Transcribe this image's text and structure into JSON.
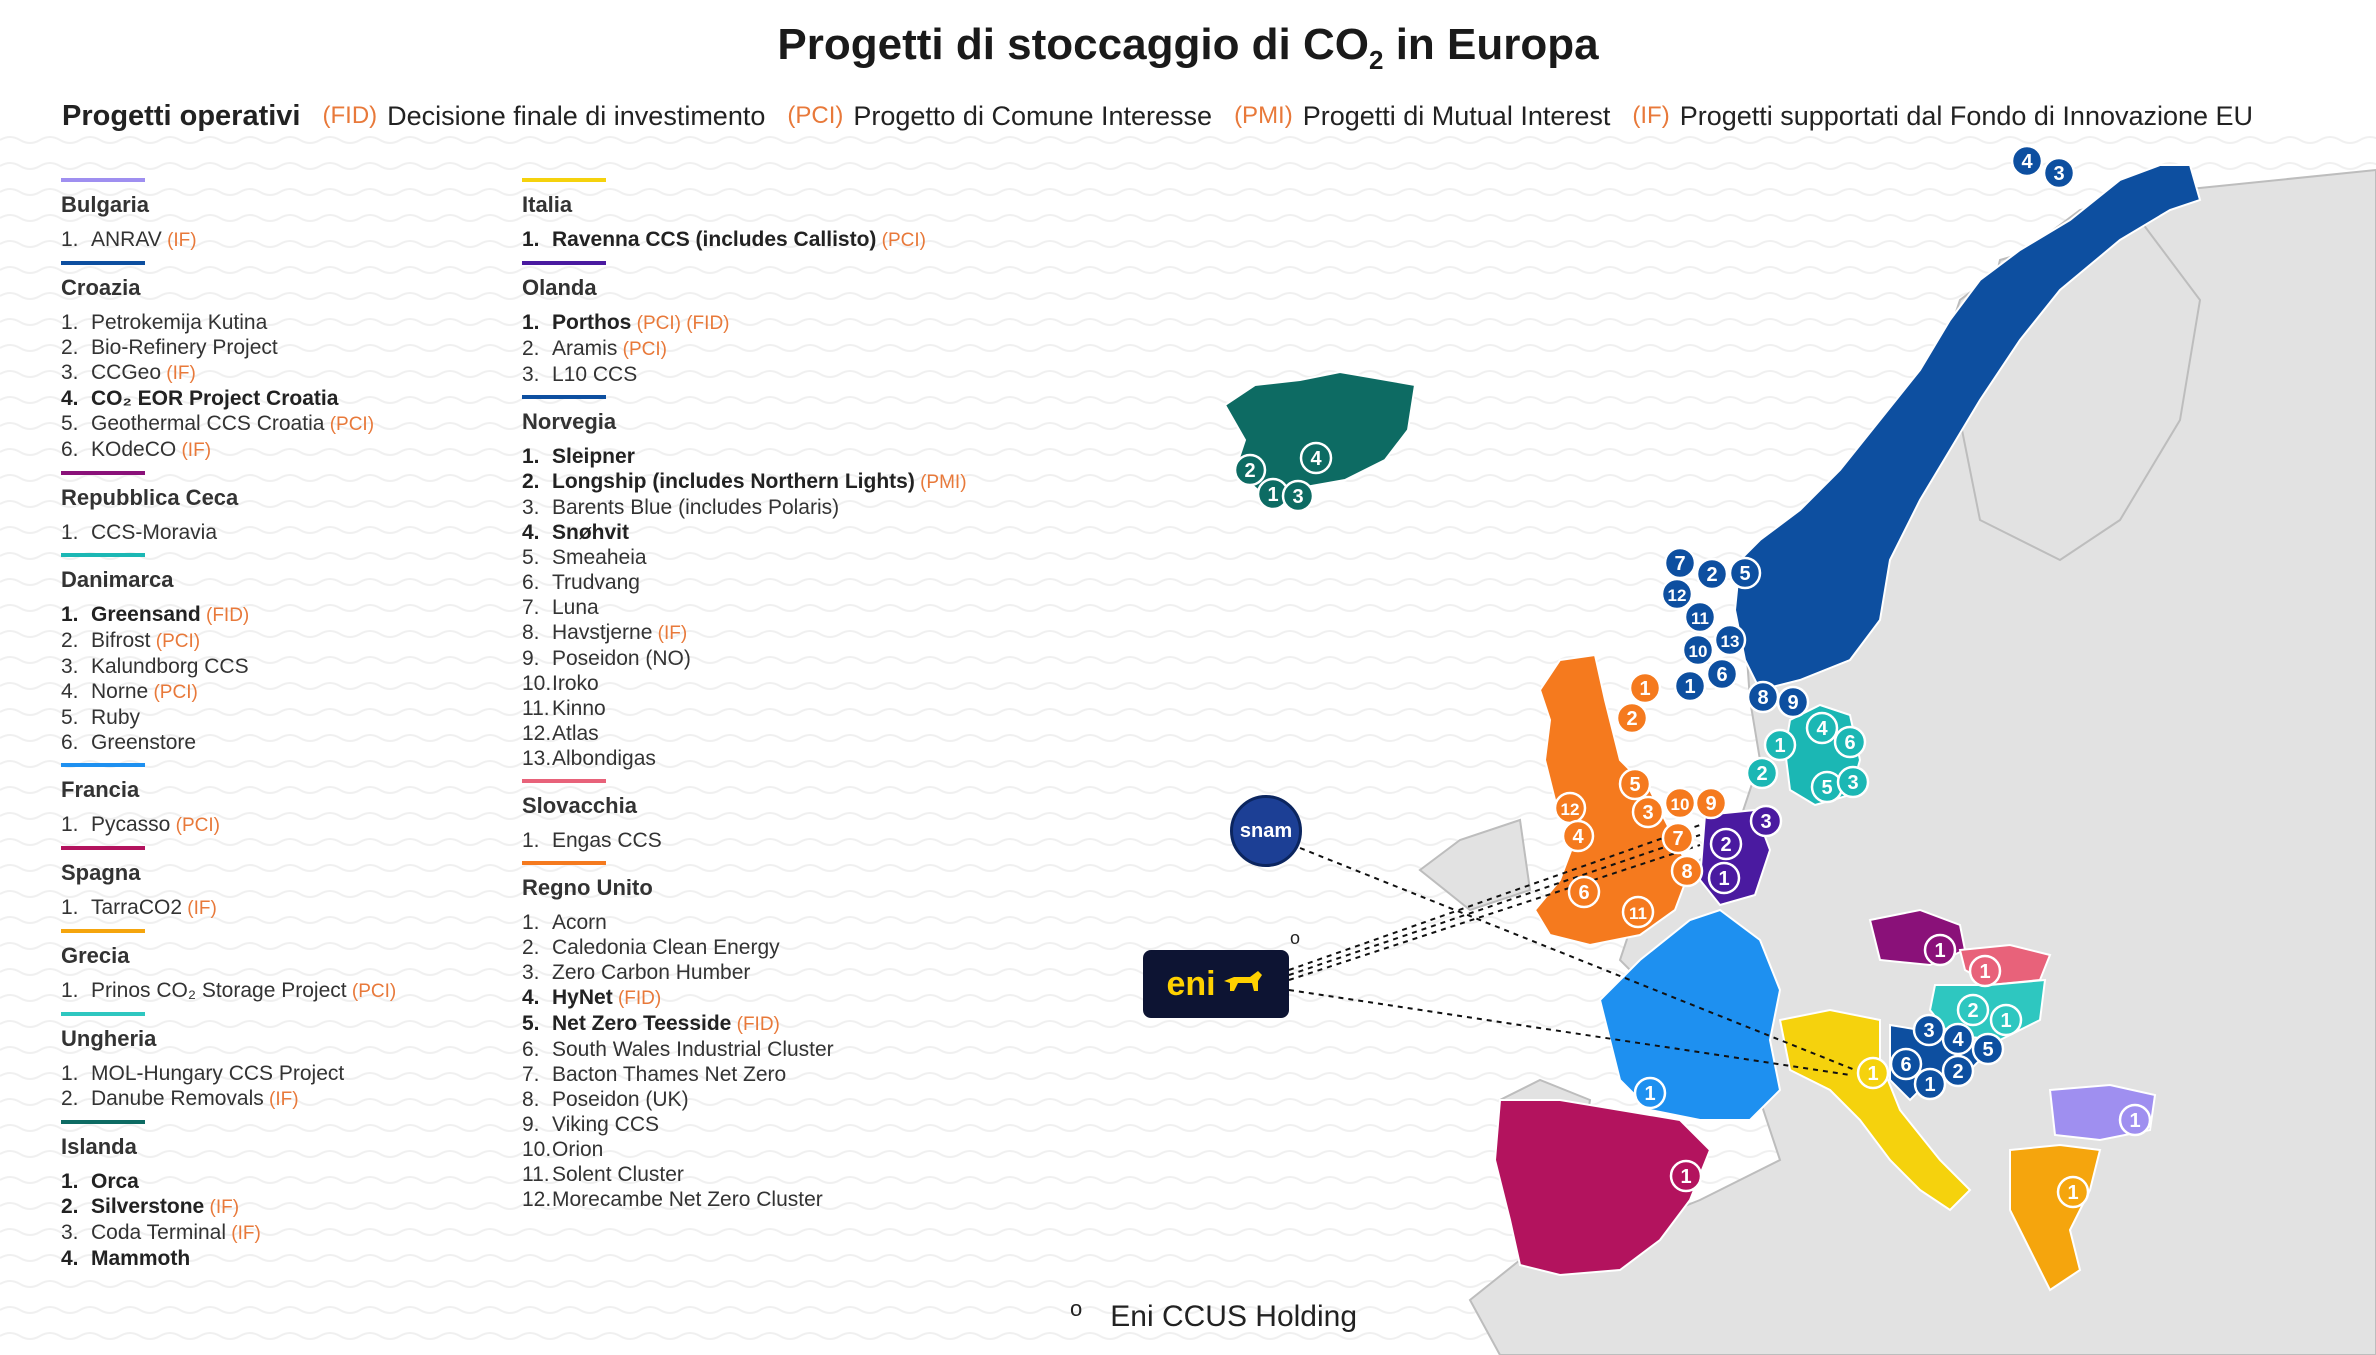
{
  "title": "Progetti di stoccaggio di CO",
  "title_sub": "2",
  "title_suffix": " in Europa",
  "legend": {
    "lead": "Progetti operativi",
    "entries": [
      {
        "code": "(FID)",
        "text": "Decisione finale di investimento"
      },
      {
        "code": "(PCI)",
        "text": "Progetto di Comune Interesse"
      },
      {
        "code": "(PMI)",
        "text": "Progetti di Mutual Interest"
      },
      {
        "code": "(IF)",
        "text": "Progetti supportati dal Fondo di Innovazione EU"
      }
    ]
  },
  "colors": {
    "tag": "#e8793a",
    "bulgaria": "#9f8ff0",
    "croazia": "#0d4fa0",
    "repceca": "#8a1179",
    "danimarca": "#1bb7b4",
    "francia": "#1e90f0",
    "spagna": "#b3135e",
    "grecia": "#f5a50d",
    "ungheria": "#2ec7c0",
    "islanda": "#0d6b63",
    "italia": "#f5d20d",
    "olanda": "#4a1aa0",
    "norvegia": "#0d4fa0",
    "slovacchia": "#e8627a",
    "regnounito": "#f57a1e",
    "land": "#e2e2e2"
  },
  "col1": [
    {
      "country": "Bulgaria",
      "color": "#9f8ff0",
      "items": [
        {
          "n": "1.",
          "t": "ANRAV",
          "tag": "(IF)",
          "b": false
        }
      ]
    },
    {
      "country": "Croazia",
      "color": "#0d4fa0",
      "items": [
        {
          "n": "1.",
          "t": "Petrokemija Kutina",
          "tag": "",
          "b": false
        },
        {
          "n": "2.",
          "t": "Bio-Refinery Project",
          "tag": "",
          "b": false
        },
        {
          "n": "3.",
          "t": "CCGeo",
          "tag": "(IF)",
          "b": false
        },
        {
          "n": "4.",
          "t": "CO₂ EOR Project Croatia",
          "tag": "",
          "b": true
        },
        {
          "n": "5.",
          "t": "Geothermal CCS Croatia",
          "tag": "(PCI)",
          "b": false
        },
        {
          "n": "6.",
          "t": "KOdeCO",
          "tag": "(IF)",
          "b": false
        }
      ]
    },
    {
      "country": "Repubblica Ceca",
      "color": "#8a1179",
      "items": [
        {
          "n": "1.",
          "t": "CCS-Moravia",
          "tag": "",
          "b": false
        }
      ]
    },
    {
      "country": "Danimarca",
      "color": "#1bb7b4",
      "items": [
        {
          "n": "1.",
          "t": "Greensand",
          "tag": "(FID)",
          "b": true
        },
        {
          "n": "2.",
          "t": "Bifrost",
          "tag": "(PCI)",
          "b": false
        },
        {
          "n": "3.",
          "t": "Kalundborg CCS",
          "tag": "",
          "b": false
        },
        {
          "n": "4.",
          "t": "Norne",
          "tag": "(PCI)",
          "b": false
        },
        {
          "n": "5.",
          "t": "Ruby",
          "tag": "",
          "b": false
        },
        {
          "n": "6.",
          "t": "Greenstore",
          "tag": "",
          "b": false
        }
      ]
    },
    {
      "country": "Francia",
      "color": "#1e90f0",
      "items": [
        {
          "n": "1.",
          "t": "Pycasso",
          "tag": "(PCI)",
          "b": false
        }
      ]
    },
    {
      "country": "Spagna",
      "color": "#b3135e",
      "items": [
        {
          "n": "1.",
          "t": "TarraCO2",
          "tag": "(IF)",
          "b": false
        }
      ]
    },
    {
      "country": "Grecia",
      "color": "#f5a50d",
      "items": [
        {
          "n": "1.",
          "t": "Prinos CO₂ Storage Project",
          "tag": "(PCI)",
          "b": false
        }
      ]
    },
    {
      "country": "Ungheria",
      "color": "#2ec7c0",
      "items": [
        {
          "n": "1.",
          "t": "MOL-Hungary CCS Project",
          "tag": "",
          "b": false
        },
        {
          "n": "2.",
          "t": "Danube Removals",
          "tag": "(IF)",
          "b": false
        }
      ]
    },
    {
      "country": "Islanda",
      "color": "#0d6b63",
      "items": [
        {
          "n": "1.",
          "t": "Orca",
          "tag": "",
          "b": true
        },
        {
          "n": "2.",
          "t": "Silverstone",
          "tag": "(IF)",
          "b": true
        },
        {
          "n": "3.",
          "t": "Coda Terminal",
          "tag": "(IF)",
          "b": false
        },
        {
          "n": "4.",
          "t": "Mammoth",
          "tag": "",
          "b": true
        }
      ]
    }
  ],
  "col2": [
    {
      "country": "Italia",
      "color": "#f5d20d",
      "items": [
        {
          "n": "1.",
          "t": "Ravenna CCS (includes Callisto)",
          "tag": "(PCI)",
          "b": true
        }
      ]
    },
    {
      "country": "Olanda",
      "color": "#4a1aa0",
      "items": [
        {
          "n": "1.",
          "t": "Porthos",
          "tag": "(PCI) (FID)",
          "b": true
        },
        {
          "n": "2.",
          "t": "Aramis",
          "tag": "(PCI)",
          "b": false
        },
        {
          "n": "3.",
          "t": "L10 CCS",
          "tag": "",
          "b": false
        }
      ]
    },
    {
      "country": "Norvegia",
      "color": "#0d4fa0",
      "items": [
        {
          "n": "1.",
          "t": "Sleipner",
          "tag": "",
          "b": true
        },
        {
          "n": "2.",
          "t": "Longship (includes Northern Lights)",
          "tag": "(PMI)",
          "b": true
        },
        {
          "n": "3.",
          "t": "Barents Blue (includes Polaris)",
          "tag": "",
          "b": false
        },
        {
          "n": "4.",
          "t": "Snøhvit",
          "tag": "",
          "b": true
        },
        {
          "n": "5.",
          "t": "Smeaheia",
          "tag": "",
          "b": false
        },
        {
          "n": "6.",
          "t": "Trudvang",
          "tag": "",
          "b": false
        },
        {
          "n": "7.",
          "t": "Luna",
          "tag": "",
          "b": false
        },
        {
          "n": "8.",
          "t": "Havstjerne",
          "tag": "(IF)",
          "b": false
        },
        {
          "n": "9.",
          "t": "Poseidon (NO)",
          "tag": "",
          "b": false
        },
        {
          "n": "10.",
          "t": "Iroko",
          "tag": "",
          "b": false
        },
        {
          "n": "11.",
          "t": "Kinno",
          "tag": "",
          "b": false
        },
        {
          "n": "12.",
          "t": "Atlas",
          "tag": "",
          "b": false
        },
        {
          "n": "13.",
          "t": "Albondigas",
          "tag": "",
          "b": false
        }
      ]
    },
    {
      "country": "Slovacchia",
      "color": "#e8627a",
      "items": [
        {
          "n": "1.",
          "t": "Engas CCS",
          "tag": "",
          "b": false
        }
      ]
    },
    {
      "country": "Regno Unito",
      "color": "#f57a1e",
      "items": [
        {
          "n": "1.",
          "t": "Acorn",
          "tag": "",
          "b": false
        },
        {
          "n": "2.",
          "t": "Caledonia Clean Energy",
          "tag": "",
          "b": false
        },
        {
          "n": "3.",
          "t": "Zero Carbon Humber",
          "tag": "",
          "b": false
        },
        {
          "n": "4.",
          "t": "HyNet",
          "tag": "(FID)",
          "b": true
        },
        {
          "n": "5.",
          "t": "Net Zero Teesside",
          "tag": "(FID)",
          "b": true
        },
        {
          "n": "6.",
          "t": "South Wales Industrial Cluster",
          "tag": "",
          "b": false
        },
        {
          "n": "7.",
          "t": "Bacton Thames Net Zero",
          "tag": "",
          "b": false
        },
        {
          "n": "8.",
          "t": "Poseidon (UK)",
          "tag": "",
          "b": false
        },
        {
          "n": "9.",
          "t": "Viking CCS",
          "tag": "",
          "b": false
        },
        {
          "n": "10.",
          "t": "Orion",
          "tag": "",
          "b": false
        },
        {
          "n": "11.",
          "t": "Solent Cluster",
          "tag": "",
          "b": false
        },
        {
          "n": "12.",
          "t": "Morecambe Net Zero Cluster",
          "tag": "",
          "b": false
        }
      ]
    }
  ],
  "logos": {
    "eni": "eni",
    "snam": "snam",
    "degree": "o"
  },
  "footnote": {
    "mark": "o",
    "text": "Eni CCUS Holding"
  },
  "markers": [
    {
      "label": "4",
      "country": "Islanda"
    },
    {
      "label": "2",
      "country": "Islanda"
    },
    {
      "label": "1",
      "country": "Islanda"
    },
    {
      "label": "3",
      "country": "Islanda"
    },
    {
      "label": "4",
      "country": "Norvegia"
    },
    {
      "label": "3",
      "country": "Norvegia"
    },
    {
      "label": "7",
      "country": "Norvegia"
    },
    {
      "label": "2",
      "country": "Norvegia"
    },
    {
      "label": "5",
      "country": "Norvegia"
    },
    {
      "label": "12",
      "country": "Norvegia"
    },
    {
      "label": "11",
      "country": "Norvegia"
    },
    {
      "label": "13",
      "country": "Norvegia"
    },
    {
      "label": "10",
      "country": "Norvegia"
    },
    {
      "label": "6",
      "country": "Norvegia"
    },
    {
      "label": "1",
      "country": "Norvegia"
    },
    {
      "label": "8",
      "country": "Norvegia"
    },
    {
      "label": "9",
      "country": "Norvegia"
    },
    {
      "label": "1",
      "country": "Danimarca"
    },
    {
      "label": "4",
      "country": "Danimarca"
    },
    {
      "label": "6",
      "country": "Danimarca"
    },
    {
      "label": "2",
      "country": "Danimarca"
    },
    {
      "label": "5",
      "country": "Danimarca"
    },
    {
      "label": "3",
      "country": "Danimarca"
    },
    {
      "label": "1",
      "country": "Regno Unito"
    },
    {
      "label": "2",
      "country": "Regno Unito"
    },
    {
      "label": "5",
      "country": "Regno Unito"
    },
    {
      "label": "12",
      "country": "Regno Unito"
    },
    {
      "label": "3",
      "country": "Regno Unito"
    },
    {
      "label": "10",
      "country": "Regno Unito"
    },
    {
      "label": "9",
      "country": "Regno Unito"
    },
    {
      "label": "4",
      "country": "Regno Unito"
    },
    {
      "label": "7",
      "country": "Regno Unito"
    },
    {
      "label": "8",
      "country": "Regno Unito"
    },
    {
      "label": "6",
      "country": "Regno Unito"
    },
    {
      "label": "11",
      "country": "Regno Unito"
    },
    {
      "label": "2",
      "country": "Olanda"
    },
    {
      "label": "3",
      "country": "Olanda"
    },
    {
      "label": "1",
      "country": "Olanda"
    },
    {
      "label": "1",
      "country": "Repubblica Ceca"
    },
    {
      "label": "1",
      "country": "Slovacchia"
    },
    {
      "label": "2",
      "country": "Ungheria"
    },
    {
      "label": "1",
      "country": "Ungheria"
    },
    {
      "label": "3",
      "country": "Croazia"
    },
    {
      "label": "4",
      "country": "Croazia"
    },
    {
      "label": "5",
      "country": "Croazia"
    },
    {
      "label": "6",
      "country": "Croazia"
    },
    {
      "label": "2",
      "country": "Croazia"
    },
    {
      "label": "1",
      "country": "Croazia"
    },
    {
      "label": "1",
      "country": "Italia"
    },
    {
      "label": "1",
      "country": "Francia"
    },
    {
      "label": "1",
      "country": "Spagna"
    },
    {
      "label": "1",
      "country": "Bulgaria"
    },
    {
      "label": "1",
      "country": "Grecia"
    }
  ]
}
